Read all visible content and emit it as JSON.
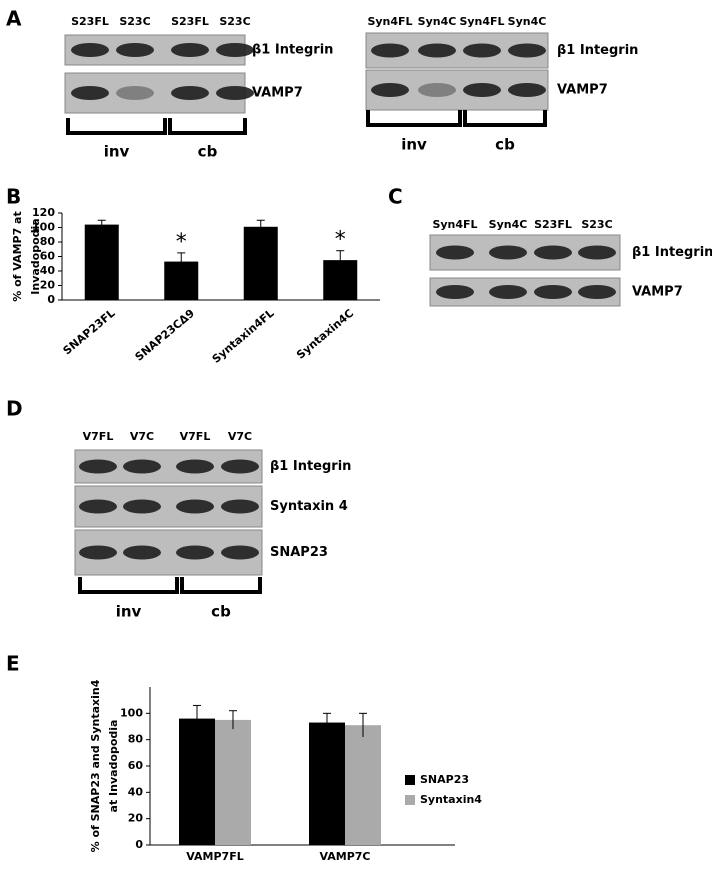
{
  "panel_labels": [
    "A",
    "B",
    "C",
    "D",
    "E"
  ],
  "blot_a_left": {
    "lanes": [
      "S23FL",
      "S23C",
      "S23FL",
      "S23C"
    ],
    "rows": [
      "β1 Integrin",
      "VAMP7"
    ],
    "groups": [
      "inv",
      "cb"
    ]
  },
  "blot_a_right": {
    "lanes": [
      "Syn4FL",
      "Syn4C",
      "Syn4FL",
      "Syn4C"
    ],
    "rows": [
      "β1 Integrin",
      "VAMP7"
    ],
    "groups": [
      "inv",
      "cb"
    ]
  },
  "blot_c": {
    "lanes": [
      "Syn4FL",
      "Syn4C",
      "S23FL",
      "S23C"
    ],
    "rows": [
      "β1 Integrin",
      "VAMP7"
    ]
  },
  "blot_d": {
    "lanes": [
      "V7FL",
      "V7C",
      "V7FL",
      "V7C"
    ],
    "rows": [
      "β1 Integrin",
      "Syntaxin 4",
      "SNAP23"
    ],
    "groups": [
      "inv",
      "cb"
    ]
  },
  "chart_data": [
    {
      "type": "bar",
      "ylabel": [
        "% of VAMP7 at",
        "Invadopodia"
      ],
      "categories": [
        "SNAP23FL",
        "SNAP23CΔ9",
        "Syntaxin4FL",
        "Syntaxin4C"
      ],
      "values": [
        104,
        53,
        101,
        55
      ],
      "errors": [
        6,
        12,
        9,
        13
      ],
      "significance": [
        null,
        "*",
        null,
        "*"
      ],
      "color": "#000000",
      "ylim": [
        0,
        120
      ],
      "yticks": [
        0,
        20,
        40,
        60,
        80,
        100,
        120
      ]
    },
    {
      "type": "bar",
      "ylabel": [
        "% of SNAP23 and Syntaxin4",
        "at Invadopodia"
      ],
      "categories": [
        "VAMP7FL",
        "VAMP7C"
      ],
      "series": [
        {
          "name": "SNAP23",
          "color": "#000000",
          "values": [
            96,
            93
          ],
          "errors": [
            10,
            7
          ]
        },
        {
          "name": "Syntaxin4",
          "color": "#aaaaaa",
          "values": [
            95,
            91
          ],
          "errors": [
            7,
            9
          ]
        }
      ],
      "ylim": [
        0,
        120
      ],
      "yticks": [
        0,
        20,
        40,
        60,
        80,
        100
      ],
      "legend": "right"
    }
  ]
}
